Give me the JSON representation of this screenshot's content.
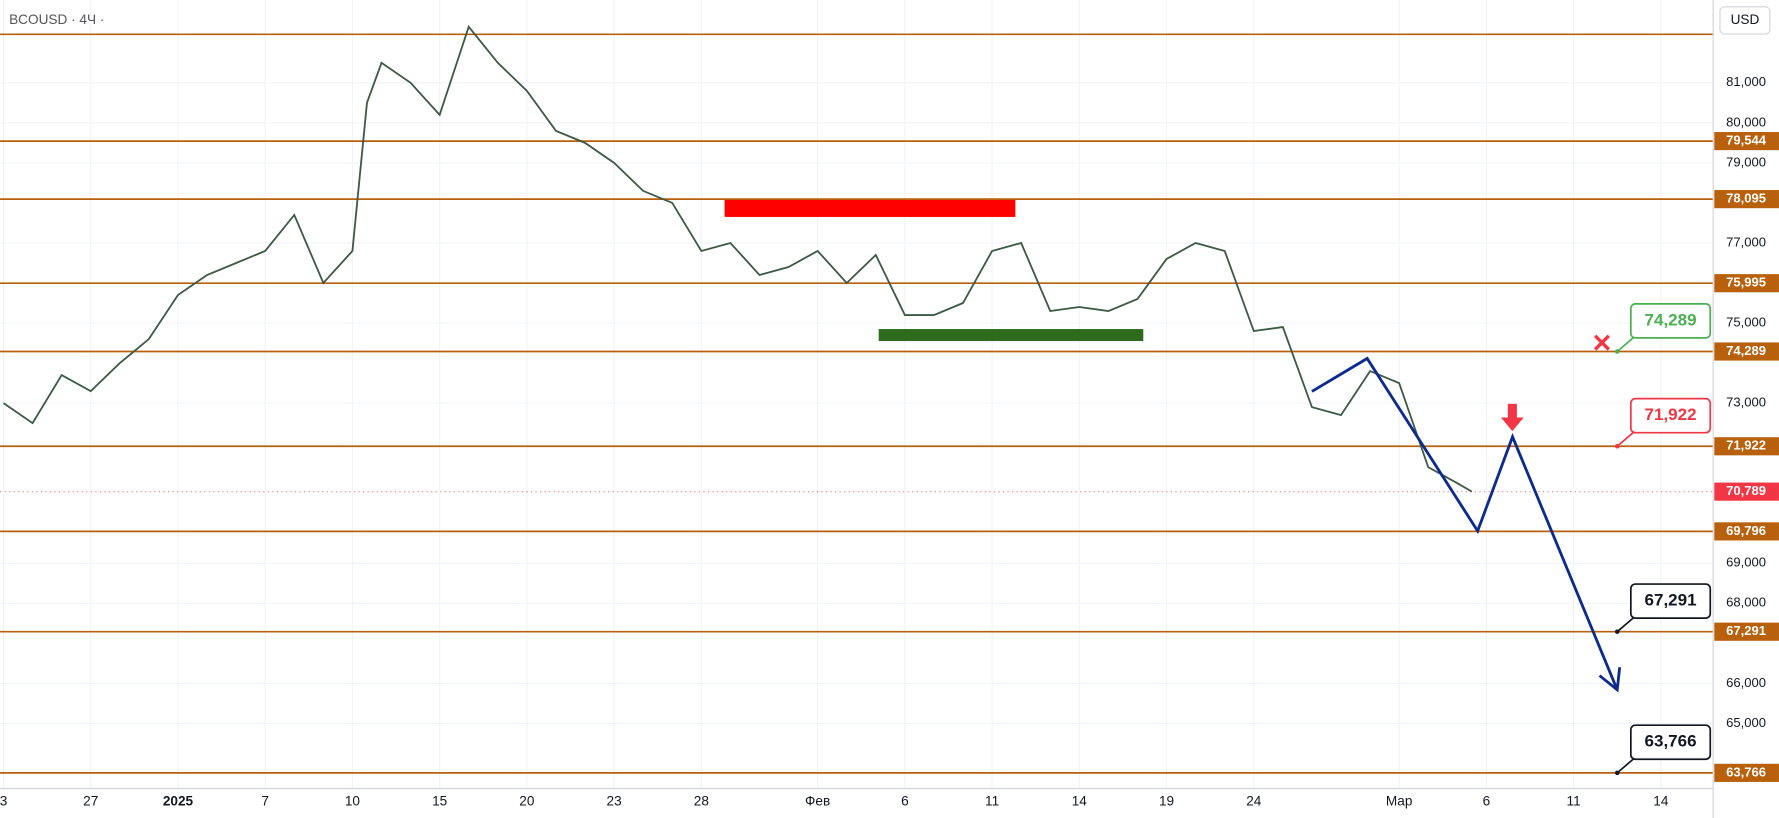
{
  "header": {
    "symbol": "BCOUSD · 4Ч ·",
    "currency": "USD"
  },
  "chart_data": {
    "type": "line",
    "color": "#3d5a45",
    "xlim": [
      -3.12,
      55.8
    ],
    "ylim": [
      63375,
      83068
    ],
    "grid": true,
    "xticks": [
      {
        "value": -3,
        "label": "3"
      },
      {
        "value": 0,
        "label": "27"
      },
      {
        "value": 3,
        "label": "2025"
      },
      {
        "value": 6,
        "label": "7"
      },
      {
        "value": 9,
        "label": "10"
      },
      {
        "value": 12,
        "label": "15"
      },
      {
        "value": 15,
        "label": "20"
      },
      {
        "value": 18,
        "label": "23"
      },
      {
        "value": 21,
        "label": "28"
      },
      {
        "value": 25,
        "label": "Фев"
      },
      {
        "value": 28,
        "label": "6"
      },
      {
        "value": 31,
        "label": "11"
      },
      {
        "value": 34,
        "label": "14"
      },
      {
        "value": 37,
        "label": "19"
      },
      {
        "value": 40,
        "label": "24"
      },
      {
        "value": 45,
        "label": "Мар"
      },
      {
        "value": 48,
        "label": "6"
      },
      {
        "value": 51,
        "label": "11"
      },
      {
        "value": 54,
        "label": "14"
      }
    ],
    "yticks": [
      {
        "value": 81000,
        "label": "81,000"
      },
      {
        "value": 80000,
        "label": "80,000"
      },
      {
        "value": 79000,
        "label": "79,000"
      },
      {
        "value": 77000,
        "label": "77,000"
      },
      {
        "value": 75000,
        "label": "75,000"
      },
      {
        "value": 73000,
        "label": "73,000"
      },
      {
        "value": 69000,
        "label": "69,000"
      },
      {
        "value": 68000,
        "label": "68,000"
      },
      {
        "value": 66000,
        "label": "66,000"
      },
      {
        "value": 65000,
        "label": "65,000"
      }
    ],
    "x": [
      -3,
      -2,
      -1,
      0,
      1,
      2,
      3,
      4,
      5,
      6,
      7,
      8,
      9,
      9.5,
      10,
      11,
      12,
      13,
      14,
      15,
      16,
      17,
      18,
      19,
      20,
      21,
      22,
      23,
      24,
      25,
      26,
      27,
      28,
      29,
      30,
      31,
      32,
      33,
      34,
      35,
      36,
      37,
      38,
      39,
      40,
      41,
      42,
      43,
      44,
      45,
      46,
      47,
      47.5
    ],
    "values": [
      73000,
      72500,
      73700,
      73300,
      74000,
      74600,
      75700,
      76200,
      76500,
      76800,
      77700,
      76000,
      76800,
      80500,
      81500,
      81000,
      80200,
      82400,
      81500,
      80800,
      79800,
      79500,
      79000,
      78300,
      78000,
      76800,
      77000,
      76200,
      76400,
      76800,
      76000,
      76700,
      75200,
      75200,
      75500,
      76800,
      77000,
      75300,
      75400,
      75300,
      75600,
      76600,
      77000,
      76800,
      74800,
      74900,
      72900,
      72700,
      73800,
      73500,
      71400,
      71000,
      70789
    ],
    "top_line": 82211,
    "level_color": "#b8600b",
    "levels": [
      {
        "value": 79544,
        "label": "79,544"
      },
      {
        "value": 78095,
        "label": "78,095"
      },
      {
        "value": 75995,
        "label": "75,995"
      },
      {
        "value": 74289,
        "label": "74,289"
      },
      {
        "value": 71922,
        "label": "71,922"
      },
      {
        "value": 69796,
        "label": "69,796"
      },
      {
        "value": 67291,
        "label": "67,291"
      },
      {
        "value": 63766,
        "label": "63,766"
      }
    ],
    "current_price": {
      "value": 70789,
      "label": "70,789",
      "color": "#f23645"
    },
    "zones": [
      {
        "x": [
          21.8,
          31.8
        ],
        "y": [
          77650,
          78100
        ],
        "color": "#ff0000"
      },
      {
        "x": [
          27.1,
          36.2
        ],
        "y": [
          74550,
          74850
        ],
        "color": "#2e6b1f"
      }
    ],
    "projection": {
      "color": "#0d2b8f",
      "x": [
        42.0,
        43.9,
        47.7,
        48.9,
        52.5
      ],
      "values": [
        73292,
        74115,
        69807,
        72159,
        65840
      ]
    },
    "callouts": [
      {
        "x": 52.5,
        "value": 74289,
        "label": "74,289",
        "color": "#4caf50"
      },
      {
        "x": 52.5,
        "value": 71922,
        "label": "71,922",
        "color": "#f23645"
      },
      {
        "x": 52.5,
        "value": 67291,
        "label": "67,291",
        "color": "#131722"
      },
      {
        "x": 52.5,
        "value": 63766,
        "label": "63,766",
        "color": "#131722"
      }
    ]
  }
}
